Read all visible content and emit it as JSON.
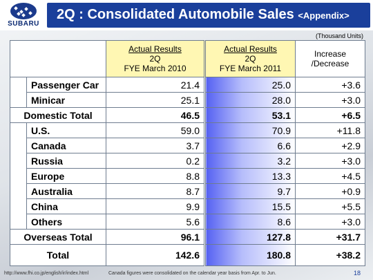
{
  "brand": {
    "logo_text": "SUBARU"
  },
  "header": {
    "title_main": "2Q : Consolidated Automobile Sales ",
    "title_suffix": "<Appendix>"
  },
  "unit_note": "(Thousand Units)",
  "columns": {
    "col2010": {
      "line1": "Actual Results",
      "line2": "2Q",
      "line3": "FYE March 2010"
    },
    "col2011": {
      "line1": "Actual Results",
      "line2": "2Q",
      "line3": "FYE March 2011"
    },
    "change": {
      "line1": "Increase",
      "line2": "/Decrease"
    }
  },
  "domestic": {
    "rows": [
      {
        "label": "Passenger Car",
        "fy2010": "21.4",
        "fy2011": "25.0",
        "change": "+3.6"
      },
      {
        "label": "Minicar",
        "fy2010": "25.1",
        "fy2011": "28.0",
        "change": "+3.0"
      }
    ],
    "total": {
      "label": "Domestic Total",
      "fy2010": "46.5",
      "fy2011": "53.1",
      "change": "+6.5"
    }
  },
  "overseas": {
    "rows": [
      {
        "label": "U.S.",
        "fy2010": "59.0",
        "fy2011": "70.9",
        "change": "+11.8"
      },
      {
        "label": "Canada",
        "fy2010": "3.7",
        "fy2011": "6.6",
        "change": "+2.9"
      },
      {
        "label": "Russia",
        "fy2010": "0.2",
        "fy2011": "3.2",
        "change": "+3.0"
      },
      {
        "label": "Europe",
        "fy2010": "8.8",
        "fy2011": "13.3",
        "change": "+4.5"
      },
      {
        "label": "Australia",
        "fy2010": "8.7",
        "fy2011": "9.7",
        "change": "+0.9"
      },
      {
        "label": "China",
        "fy2010": "9.9",
        "fy2011": "15.5",
        "change": "+5.5"
      },
      {
        "label": "Others",
        "fy2010": "5.6",
        "fy2011": "8.6",
        "change": "+3.0"
      }
    ],
    "total": {
      "label": "Overseas Total",
      "fy2010": "96.1",
      "fy2011": "127.8",
      "change": "+31.7"
    }
  },
  "grand_total": {
    "label": "Total",
    "fy2010": "142.6",
    "fy2011": "180.8",
    "change": "+38.2"
  },
  "footer": {
    "url": "http://www.fhi.co.jp/english/ir/index.html",
    "note": "Canada figures were consolidated on the calendar year basis from Apr. to Jun.",
    "page": "18"
  },
  "colors": {
    "title_bar": "#1a3f9b",
    "header_cells": "#fff7b3",
    "fy2011_gradient_start": "#5561f2"
  }
}
